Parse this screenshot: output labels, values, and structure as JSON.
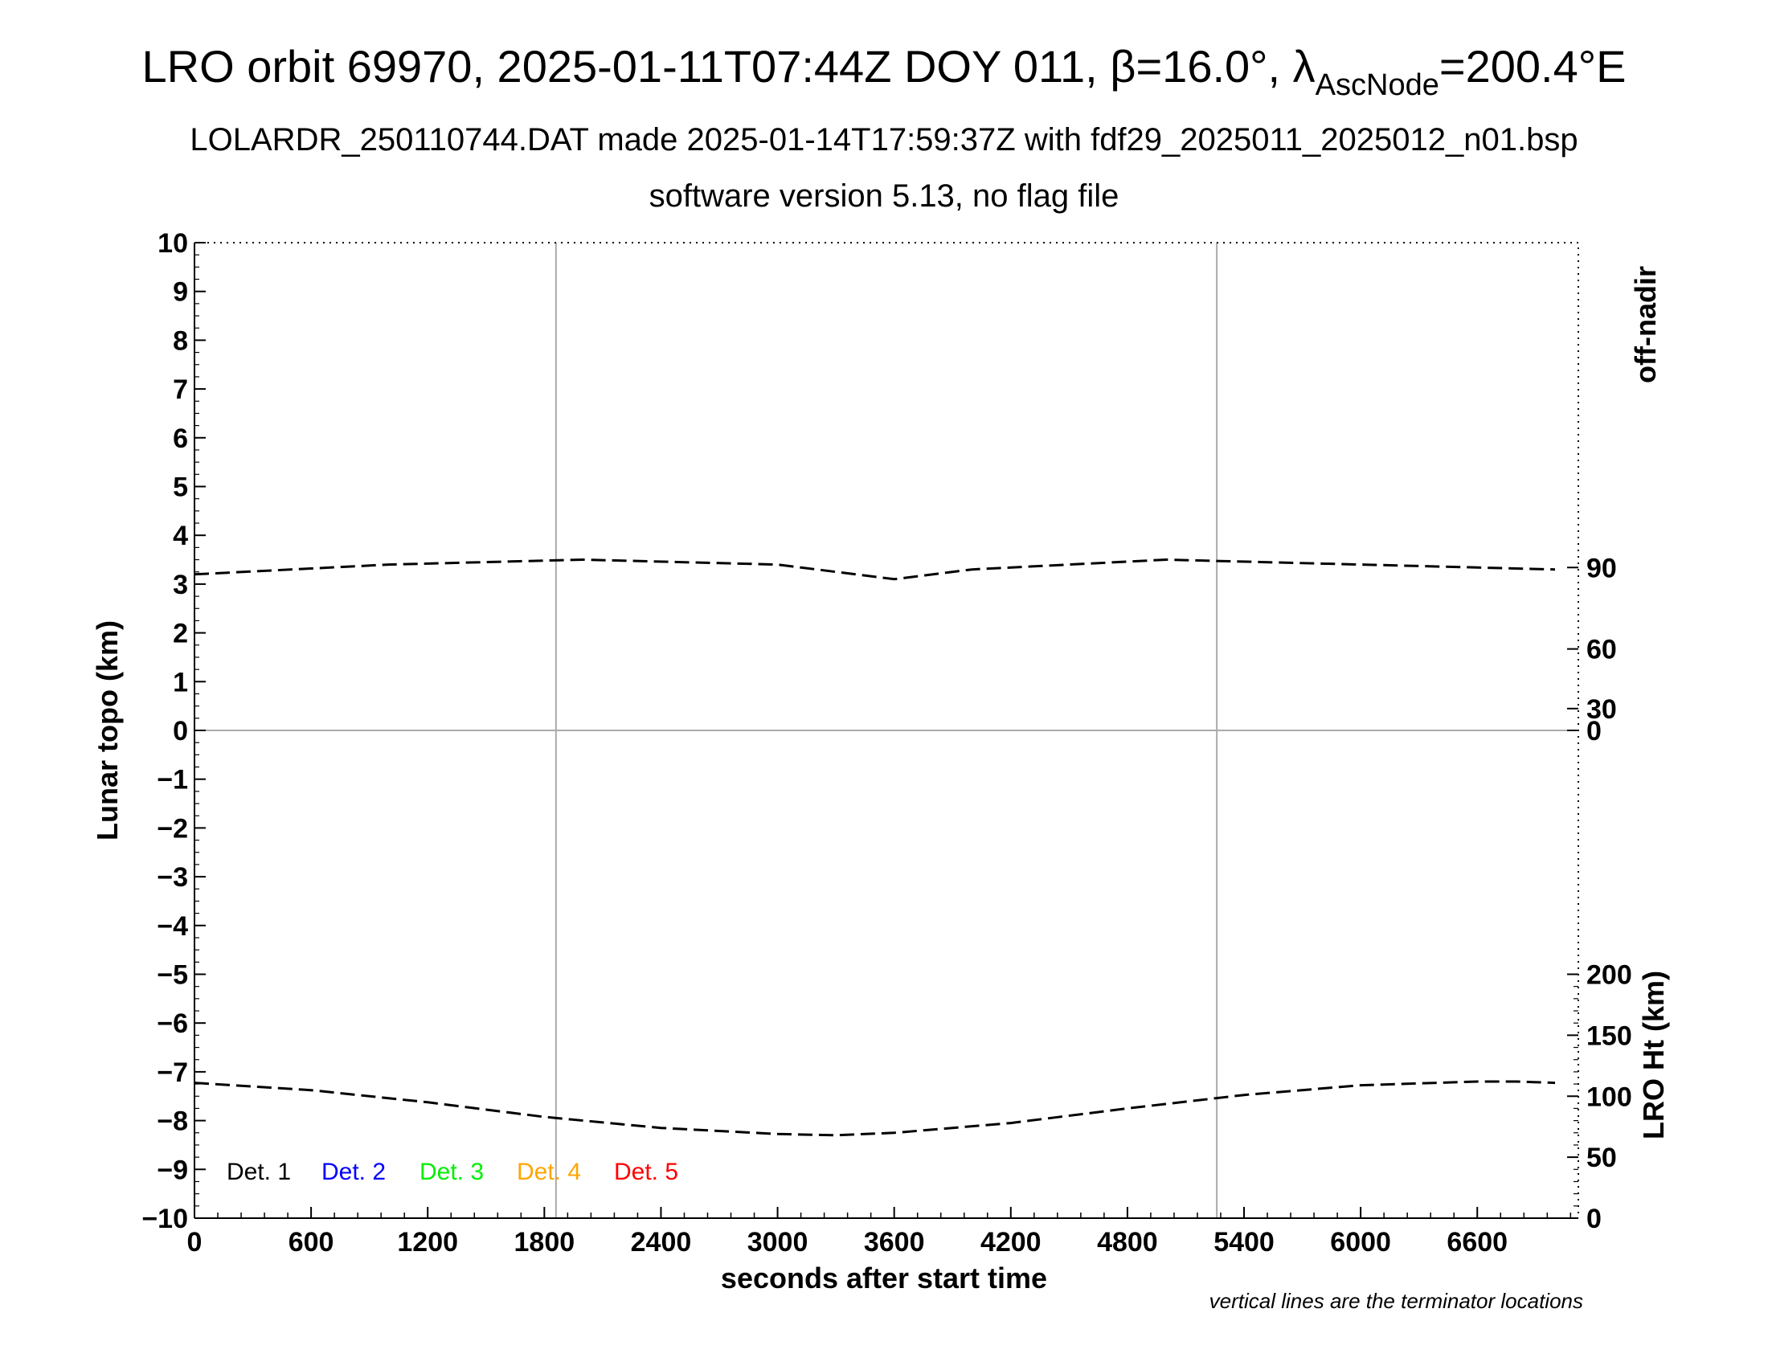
{
  "title": {
    "prefix": "LRO orbit 69970, 2025-01-11T07:44Z DOY 011, β=16.0°, λ",
    "subscript": "AscNode",
    "suffix": "=200.4°E"
  },
  "subtitle1": "LOLARDR_250110744.DAT made 2025-01-14T17:59:37Z with fdf29_2025011_2025012_n01.bsp",
  "subtitle2": "software version 5.13, no flag file",
  "footnote": "vertical lines are the terminator locations",
  "chart_data": {
    "type": "line",
    "xlabel": "seconds after start time",
    "ylabel": "Lunar topo (km)",
    "y2_top_label": "off-nadir",
    "y2_bottom_label": "LRO Ht (km)",
    "xlim": [
      0,
      7120
    ],
    "ylim": [
      -10,
      10
    ],
    "xticks": [
      0,
      600,
      1200,
      1800,
      2400,
      3000,
      3600,
      4200,
      4800,
      5400,
      6000,
      6600
    ],
    "yticks": [
      10,
      9,
      8,
      7,
      6,
      5,
      4,
      3,
      2,
      1,
      0,
      -1,
      -2,
      -3,
      -4,
      -5,
      -6,
      -7,
      -8,
      -9,
      -10
    ],
    "ytick_labels": [
      "10",
      "9",
      "8",
      "7",
      "6",
      "5",
      "4",
      "3",
      "2",
      "1",
      "0",
      "−1",
      "−2",
      "−3",
      "−4",
      "−5",
      "−6",
      "−7",
      "−8",
      "−9",
      "−10"
    ],
    "offnadir_ticks": [
      90,
      60,
      30,
      0
    ],
    "offnadir_range_km": [
      0,
      10
    ],
    "lro_ht_ticks": [
      200,
      150,
      100,
      50,
      0
    ],
    "lro_ht_range_km": [
      -10,
      -5
    ],
    "terminators": [
      1860,
      5260
    ],
    "legend": [
      {
        "label": "Det. 1",
        "color": "#000000"
      },
      {
        "label": "Det. 2",
        "color": "#0000ff"
      },
      {
        "label": "Det. 3",
        "color": "#00ee00"
      },
      {
        "label": "Det. 4",
        "color": "#ffa500"
      },
      {
        "label": "Det. 5",
        "color": "#ff0000"
      }
    ],
    "series": [
      {
        "id": "off-nadir",
        "style": "dashed",
        "color": "#000000",
        "x": [
          0,
          1000,
          2000,
          3000,
          3600,
          4000,
          5000,
          6000,
          7000
        ],
        "values": [
          3.2,
          3.4,
          3.5,
          3.4,
          3.1,
          3.3,
          3.5,
          3.4,
          3.3
        ]
      },
      {
        "id": "lro-height",
        "style": "dashed",
        "color": "#000000",
        "x": [
          0,
          600,
          1200,
          1800,
          2400,
          3000,
          3300,
          3600,
          4200,
          4800,
          5400,
          6000,
          6600,
          6800,
          7000
        ],
        "values": [
          111,
          105,
          95,
          83,
          74,
          69,
          68,
          70,
          78,
          90,
          101,
          109,
          112,
          112,
          111
        ]
      }
    ]
  }
}
